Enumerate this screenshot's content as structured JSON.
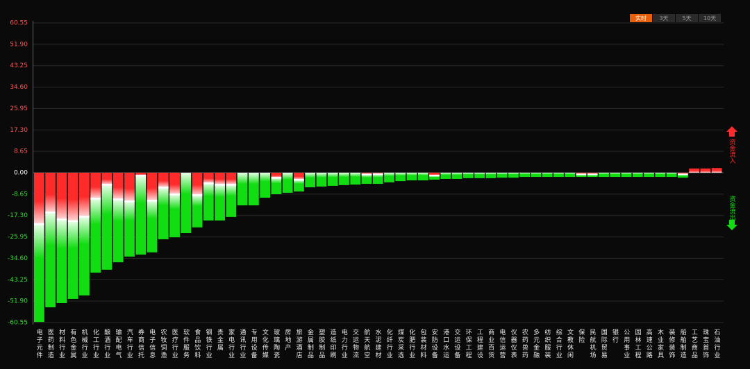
{
  "chart_data": {
    "type": "stacked-bar",
    "categories": [
      "电子元件",
      "医药制造",
      "材料行业",
      "有色金属",
      "机械行业",
      "化工行业",
      "酿酒行业",
      "输配电气",
      "汽车行业",
      "券商信托",
      "电子信息",
      "农牧饲渔",
      "医疗行业",
      "软件服务",
      "食品饮料",
      "钢铁行业",
      "贵金属",
      "家电行业",
      "通讯行业",
      "专用设备",
      "文化传媒",
      "玻璃陶瓷",
      "房地产",
      "旅游酒店",
      "金属制品",
      "塑胶制品",
      "造纸印刷",
      "电力行业",
      "交运物流",
      "航天航空",
      "水泥建材",
      "化纤行业",
      "煤炭采选",
      "化肥行业",
      "包装材料",
      "安防设备",
      "港口水运",
      "交运设备",
      "环保工程",
      "工程建设",
      "商业百货",
      "电信运营",
      "仪器仪表",
      "农药兽药",
      "多元金融",
      "纺织服装",
      "综合行业",
      "文教休闲",
      "保险",
      "民航机场",
      "国际贸易",
      "银行",
      "公用事业",
      "园林工程",
      "高速公路",
      "木业家具",
      "装修装饰",
      "船舶制造",
      "工艺商品",
      "珠宝首饰",
      "石油行业"
    ],
    "series": [
      {
        "name": "资金流入",
        "color": "#ff2b2b",
        "values": [
          -20.7,
          -16,
          -18.8,
          -19.5,
          -17.7,
          -10.4,
          -4.8,
          -10.7,
          -11.5,
          -1.1,
          -11.2,
          -5.9,
          -8.7,
          0,
          -9,
          -4.2,
          -4.8,
          -4.8,
          0,
          0,
          0,
          -2,
          0,
          -2.8,
          0,
          0,
          0,
          0,
          0,
          -0.6,
          -0.5,
          0,
          0,
          0,
          0,
          -1.1,
          0,
          0,
          0,
          0,
          0,
          0,
          0,
          0,
          0,
          0,
          0,
          0,
          -0.6,
          -0.6,
          0,
          0,
          0,
          0,
          0,
          0,
          0,
          -0.6,
          1.7,
          1.7,
          1.9
        ]
      },
      {
        "name": "资金流出",
        "color": "#12dd12",
        "values": [
          -39.6,
          -38.4,
          -33.9,
          -31.5,
          -31.9,
          -30,
          -34.4,
          -25.5,
          -22.4,
          -32,
          -21,
          -21,
          -17.4,
          -24.4,
          -13.1,
          -15.1,
          -14.5,
          -13.1,
          -13.2,
          -13.2,
          -10.1,
          -6.7,
          -8.1,
          -4.8,
          -5.9,
          -5.6,
          -5.3,
          -5,
          -4.8,
          -3.9,
          -4,
          -3.9,
          -3.4,
          -3.1,
          -3.1,
          -1.7,
          -2.5,
          -2.5,
          -2.2,
          -2.2,
          -2.2,
          -2,
          -2,
          -1.7,
          -1.7,
          -1.7,
          -1.7,
          -1.7,
          -1.1,
          -1.1,
          -1.7,
          -1.7,
          -1.7,
          -1.7,
          -1.7,
          -1.7,
          -1.7,
          -1.4,
          0,
          0,
          0
        ]
      }
    ],
    "ylim": [
      -60.55,
      60.55
    ],
    "yticks": [
      60.55,
      {
        "value": 51.9,
        "label": "51.90"
      },
      43.25,
      {
        "value": 34.6,
        "label": "34.60"
      },
      25.95,
      {
        "value": 17.3,
        "label": "17.30"
      },
      8.65,
      {
        "value": 0,
        "label": "0.00"
      },
      -8.65,
      {
        "value": -17.3,
        "label": "-17.30"
      },
      -25.95,
      {
        "value": -34.6,
        "label": "-34.60"
      },
      -43.25,
      {
        "value": -51.9,
        "label": "-51.90"
      },
      -60.55
    ],
    "grid": true,
    "buttons": [
      "实时",
      "3天",
      "5天",
      "10天"
    ]
  }
}
